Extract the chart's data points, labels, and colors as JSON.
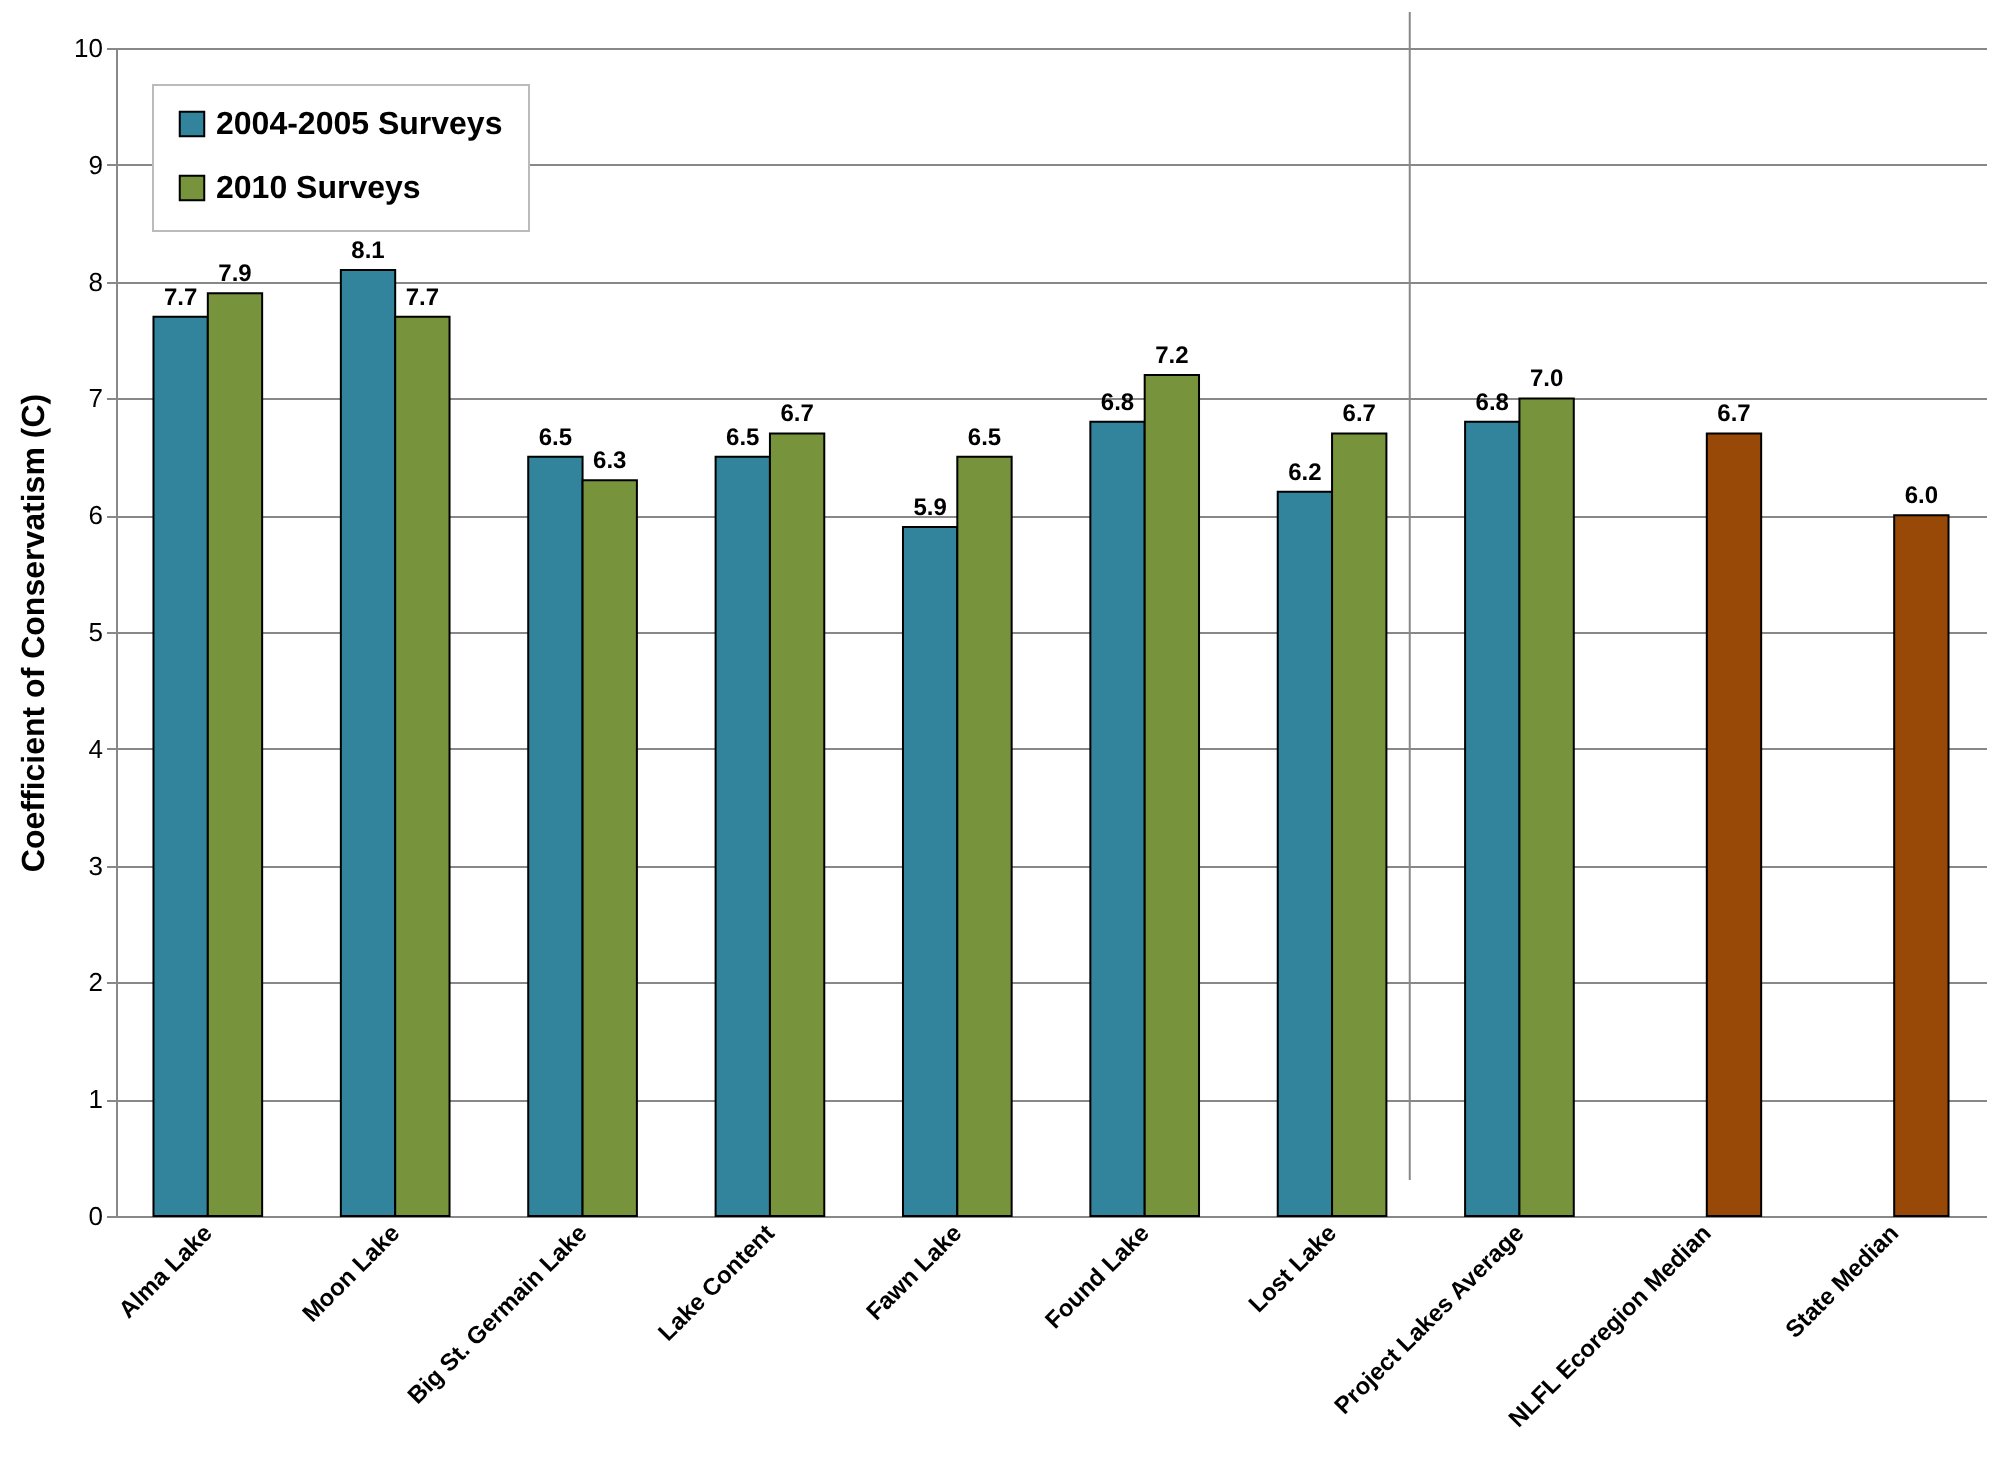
{
  "chart_data": {
    "type": "bar",
    "ylabel": "Coefficient of Conservatism (C)",
    "categories": [
      "Alma Lake",
      "Moon Lake",
      "Big St. Germain Lake",
      "Lake Content",
      "Fawn Lake",
      "Found Lake",
      "Lost Lake",
      "Project Lakes Average",
      "NLFL Ecoregion Median",
      "State Median"
    ],
    "series": [
      {
        "name": "2004-2005 Surveys",
        "color": "#31849b",
        "values": [
          7.7,
          8.1,
          6.5,
          6.5,
          5.9,
          6.8,
          6.2,
          6.8,
          null,
          null
        ],
        "value_labels": [
          "7.7",
          "8.1",
          "6.5",
          "6.5",
          "5.9",
          "6.8",
          "6.2",
          "6.8",
          null,
          null
        ]
      },
      {
        "name": "2010 Surveys",
        "color": "#77933c",
        "colors": [
          "#77933c",
          "#77933c",
          "#77933c",
          "#77933c",
          "#77933c",
          "#77933c",
          "#77933c",
          "#77933c",
          "#984807",
          "#984807"
        ],
        "values": [
          7.9,
          7.7,
          6.3,
          6.7,
          6.5,
          7.2,
          6.7,
          7.0,
          6.7,
          6.0
        ],
        "value_labels": [
          "7.9",
          "7.7",
          "6.3",
          "6.7",
          "6.5",
          "7.2",
          "6.7",
          "7.0",
          "6.7",
          "6.0"
        ]
      }
    ],
    "ylim": [
      0,
      10
    ],
    "yticks": [
      0,
      1,
      2,
      3,
      4,
      5,
      6,
      7,
      8,
      9,
      10
    ],
    "grid": "y",
    "legend": "top left"
  }
}
